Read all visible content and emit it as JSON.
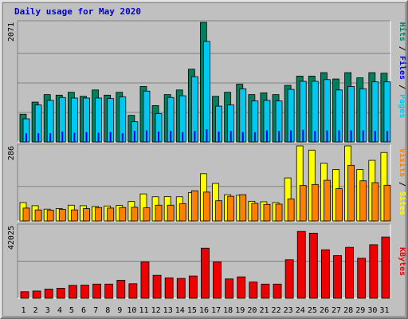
{
  "title": "Daily usage for May 2020",
  "colors": {
    "hits": "#007f5f",
    "files": "#00c8f0",
    "pages": "#0000ee",
    "visits": "#ff8000",
    "sites": "#ffff00",
    "kbytes": "#ee0000",
    "weekend_label": "#008040",
    "weekday_label": "#000000"
  },
  "chart_data": [
    {
      "type": "bar",
      "title": "Daily usage for May 2020",
      "ymax_label": "2071",
      "ylim": [
        0,
        2071
      ],
      "legend": [
        {
          "name": "Pages",
          "color": "#00c8f0"
        },
        {
          "name": "Files",
          "color": "#0000ee"
        },
        {
          "name": "Hits",
          "color": "#007f5f"
        }
      ],
      "categories": [
        "1",
        "2",
        "3",
        "4",
        "5",
        "6",
        "7",
        "8",
        "9",
        "10",
        "11",
        "12",
        "13",
        "14",
        "15",
        "16",
        "17",
        "18",
        "19",
        "20",
        "21",
        "22",
        "23",
        "24",
        "25",
        "26",
        "27",
        "28",
        "29",
        "30",
        "31"
      ],
      "series": [
        {
          "name": "Hits",
          "values": [
            480,
            690,
            820,
            810,
            860,
            790,
            900,
            810,
            860,
            460,
            960,
            630,
            820,
            900,
            1260,
            2071,
            790,
            860,
            1000,
            820,
            850,
            820,
            980,
            1140,
            1140,
            1200,
            1090,
            1200,
            1110,
            1200,
            1190
          ]
        },
        {
          "name": "Files",
          "values": [
            400,
            640,
            720,
            770,
            760,
            760,
            760,
            750,
            780,
            350,
            880,
            490,
            770,
            800,
            1130,
            1740,
            620,
            640,
            920,
            710,
            720,
            710,
            910,
            1050,
            1050,
            1080,
            900,
            960,
            920,
            1040,
            1040
          ]
        },
        {
          "name": "Pages",
          "values": [
            150,
            150,
            150,
            180,
            160,
            170,
            160,
            170,
            150,
            190,
            200,
            180,
            190,
            170,
            190,
            220,
            180,
            190,
            170,
            170,
            200,
            190,
            200,
            210,
            190,
            200,
            200,
            200,
            200,
            190,
            190
          ]
        }
      ]
    },
    {
      "type": "bar",
      "ymax_label": "286",
      "ylim": [
        0,
        286
      ],
      "legend": [
        {
          "name": "Sites",
          "color": "#ffff00"
        },
        {
          "name": "Visits",
          "color": "#ff8000"
        }
      ],
      "categories": [
        "1",
        "2",
        "3",
        "4",
        "5",
        "6",
        "7",
        "8",
        "9",
        "10",
        "11",
        "12",
        "13",
        "14",
        "15",
        "16",
        "17",
        "18",
        "19",
        "20",
        "21",
        "22",
        "23",
        "24",
        "25",
        "26",
        "27",
        "28",
        "29",
        "30",
        "31"
      ],
      "series": [
        {
          "name": "Sites",
          "values": [
            70,
            58,
            45,
            47,
            60,
            58,
            55,
            57,
            59,
            74,
            103,
            92,
            93,
            92,
            108,
            180,
            143,
            100,
            98,
            75,
            73,
            70,
            164,
            286,
            270,
            220,
            196,
            286,
            196,
            231,
            261
          ]
        },
        {
          "name": "Visits",
          "values": [
            49,
            42,
            41,
            44,
            42,
            47,
            51,
            49,
            51,
            52,
            50,
            60,
            60,
            66,
            115,
            110,
            77,
            94,
            100,
            67,
            63,
            64,
            84,
            135,
            139,
            155,
            123,
            212,
            153,
            146,
            136
          ]
        }
      ]
    },
    {
      "type": "bar",
      "ymax_label": "42025",
      "ylim": [
        0,
        42025
      ],
      "legend": [
        {
          "name": "KBytes",
          "color": "#ee0000"
        }
      ],
      "categories": [
        "1",
        "2",
        "3",
        "4",
        "5",
        "6",
        "7",
        "8",
        "9",
        "10",
        "11",
        "12",
        "13",
        "14",
        "15",
        "16",
        "17",
        "18",
        "19",
        "20",
        "21",
        "22",
        "23",
        "24",
        "25",
        "26",
        "27",
        "28",
        "29",
        "30",
        "31"
      ],
      "series": [
        {
          "name": "KBytes",
          "values": [
            3800,
            4200,
            5300,
            5800,
            7500,
            7600,
            8200,
            8200,
            10400,
            8400,
            21000,
            13300,
            11800,
            11500,
            12900,
            29000,
            21000,
            11200,
            12400,
            9400,
            8200,
            8200,
            22300,
            38700,
            37700,
            28100,
            24700,
            29500,
            23200,
            31000,
            35500
          ]
        }
      ]
    }
  ],
  "x_labels": [
    {
      "text": "1",
      "weekend": false
    },
    {
      "text": "2",
      "weekend": false
    },
    {
      "text": "3",
      "weekend": true
    },
    {
      "text": "4",
      "weekend": false
    },
    {
      "text": "5",
      "weekend": false
    },
    {
      "text": "6",
      "weekend": false
    },
    {
      "text": "7",
      "weekend": false
    },
    {
      "text": "8",
      "weekend": false
    },
    {
      "text": "9",
      "weekend": true
    },
    {
      "text": "10",
      "weekend": true
    },
    {
      "text": "11",
      "weekend": false
    },
    {
      "text": "12",
      "weekend": false
    },
    {
      "text": "13",
      "weekend": false
    },
    {
      "text": "14",
      "weekend": false
    },
    {
      "text": "15",
      "weekend": false
    },
    {
      "text": "16",
      "weekend": true
    },
    {
      "text": "17",
      "weekend": true
    },
    {
      "text": "18",
      "weekend": false
    },
    {
      "text": "19",
      "weekend": false
    },
    {
      "text": "20",
      "weekend": false
    },
    {
      "text": "21",
      "weekend": false
    },
    {
      "text": "22",
      "weekend": false
    },
    {
      "text": "23",
      "weekend": true
    },
    {
      "text": "24",
      "weekend": true
    },
    {
      "text": "25",
      "weekend": false
    },
    {
      "text": "26",
      "weekend": false
    },
    {
      "text": "27",
      "weekend": false
    },
    {
      "text": "28",
      "weekend": false
    },
    {
      "text": "29",
      "weekend": false
    },
    {
      "text": "30",
      "weekend": true
    },
    {
      "text": "31",
      "weekend": true
    }
  ]
}
